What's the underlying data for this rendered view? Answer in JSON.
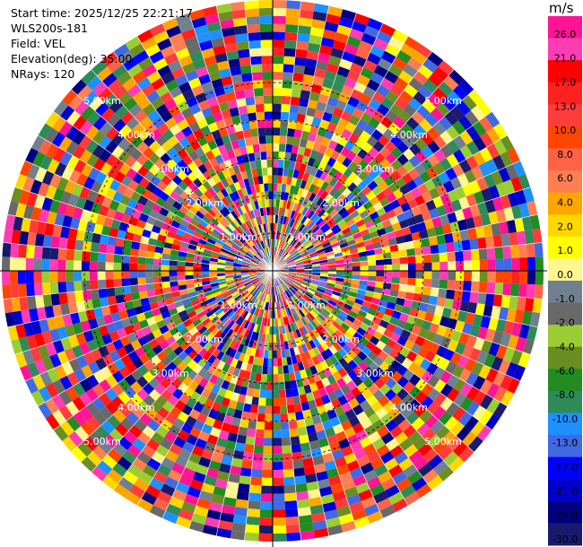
{
  "chart_data": {
    "type": "heatmap",
    "subtype": "polar-ppi",
    "header": {
      "start_time": "Start time: 2025/12/25 22:21:17",
      "station": "WLS200s-181",
      "field": "Field: VEL",
      "elevation": "Elevation(deg): 35.00",
      "nrays": "NRays: 120"
    },
    "nrays": 120,
    "range_rings_km": [
      "1.00km",
      "2.00km",
      "3.00km",
      "4.00km",
      "5.00km"
    ],
    "colorbar": {
      "unit": "m/s",
      "labels": [
        "26.0",
        "21.0",
        "17.0",
        "13.0",
        "10.0",
        "8.0",
        "6.0",
        "4.0",
        "2.0",
        "1.0",
        "0.0",
        "-1.0",
        "-2.0",
        "-4.0",
        "-6.0",
        "-8.0",
        "-10.0",
        "-13.0",
        "-17.0",
        "-21.0",
        "-26.0",
        "-30.0"
      ],
      "colors": [
        "#ff1493",
        "#ff3cb4",
        "#ff0000",
        "#ff2020",
        "#ff3c3c",
        "#ff4500",
        "#ff6347",
        "#ff7f50",
        "#ffa500",
        "#ffd700",
        "#ffff00",
        "#fff68f",
        "#708090",
        "#696969",
        "#9acd32",
        "#6b8e23",
        "#228b22",
        "#2e8b57",
        "#1e90ff",
        "#4169e1",
        "#0000ff",
        "#0000cd",
        "#000080",
        "#191970"
      ]
    }
  }
}
